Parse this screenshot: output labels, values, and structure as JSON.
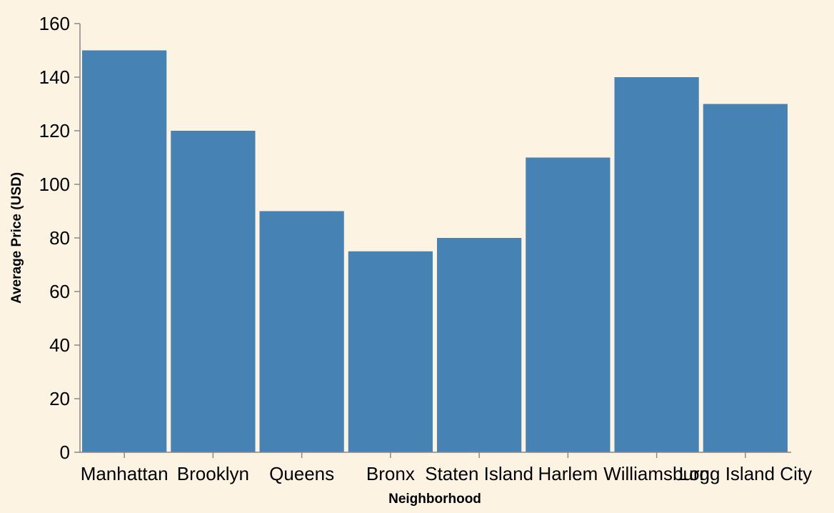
{
  "chart_data": {
    "type": "bar",
    "categories": [
      "Manhattan",
      "Brooklyn",
      "Queens",
      "Bronx",
      "Staten Island",
      "Harlem",
      "Williamsburg",
      "Long Island City"
    ],
    "values": [
      150,
      120,
      90,
      75,
      80,
      110,
      140,
      130
    ],
    "title": "",
    "xlabel": "Neighborhood",
    "ylabel": "Average Price (USD)",
    "ylim": [
      0,
      160
    ],
    "yticks": [
      0,
      20,
      40,
      60,
      80,
      100,
      120,
      140,
      160
    ],
    "grid": false,
    "colors": {
      "bar": "#4682b4",
      "background": "#fdf3e3",
      "axis": "#888888"
    }
  }
}
